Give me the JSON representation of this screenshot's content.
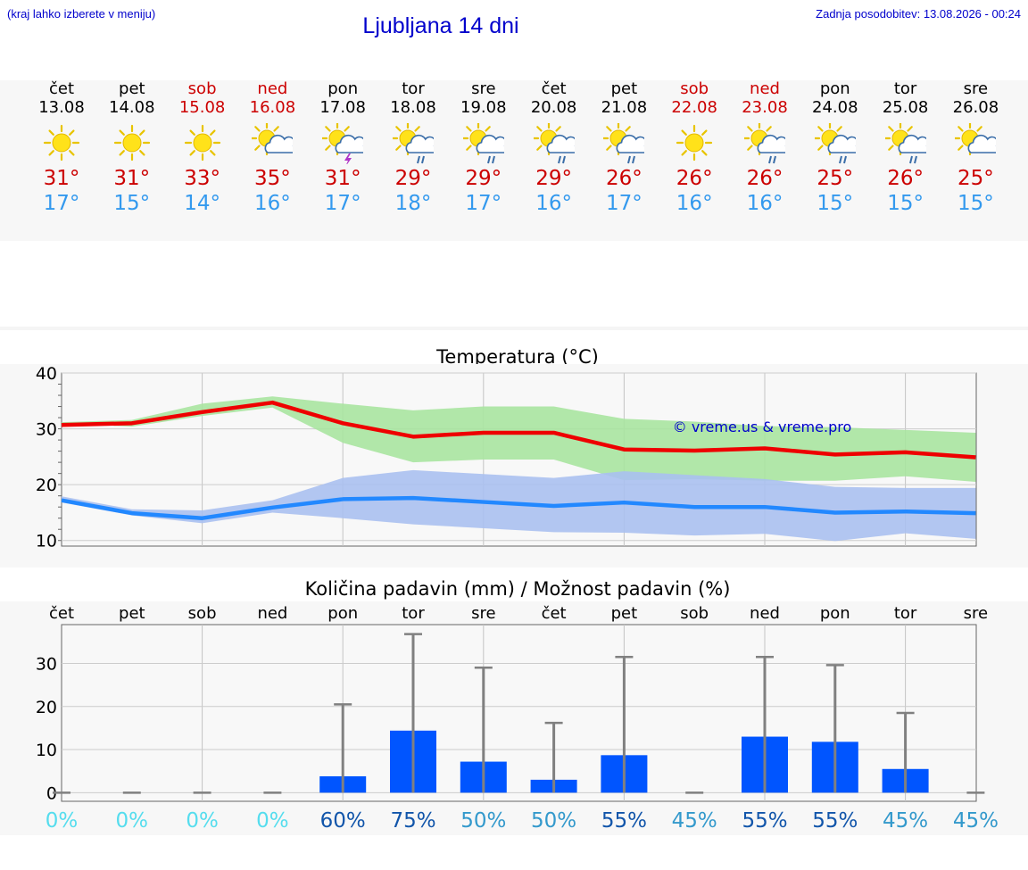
{
  "header": {
    "hint": "(kraj lahko izberete v meniju)",
    "title": "Ljubljana 14 dni",
    "updated": "Zadnja posodobitev: 13.08.2026 - 00:24"
  },
  "days": [
    {
      "name": "čet",
      "date": "13.08",
      "weekend": false,
      "icon": "sun-icon",
      "tmax": "31°",
      "tmin": "17°"
    },
    {
      "name": "pet",
      "date": "14.08",
      "weekend": false,
      "icon": "sun-icon",
      "tmax": "31°",
      "tmin": "15°"
    },
    {
      "name": "sob",
      "date": "15.08",
      "weekend": true,
      "icon": "sun-icon",
      "tmax": "33°",
      "tmin": "14°"
    },
    {
      "name": "ned",
      "date": "16.08",
      "weekend": true,
      "icon": "sun-cloud-icon",
      "tmax": "35°",
      "tmin": "16°"
    },
    {
      "name": "pon",
      "date": "17.08",
      "weekend": false,
      "icon": "sun-cloud-thunder-icon",
      "tmax": "31°",
      "tmin": "17°"
    },
    {
      "name": "tor",
      "date": "18.08",
      "weekend": false,
      "icon": "sun-cloud-rain-icon",
      "tmax": "29°",
      "tmin": "18°"
    },
    {
      "name": "sre",
      "date": "19.08",
      "weekend": false,
      "icon": "sun-cloud-rain-icon",
      "tmax": "29°",
      "tmin": "17°"
    },
    {
      "name": "čet",
      "date": "20.08",
      "weekend": false,
      "icon": "sun-cloud-rain-icon",
      "tmax": "29°",
      "tmin": "16°"
    },
    {
      "name": "pet",
      "date": "21.08",
      "weekend": false,
      "icon": "sun-cloud-rain-icon",
      "tmax": "26°",
      "tmin": "17°"
    },
    {
      "name": "sob",
      "date": "22.08",
      "weekend": true,
      "icon": "sun-icon",
      "tmax": "26°",
      "tmin": "16°"
    },
    {
      "name": "ned",
      "date": "23.08",
      "weekend": true,
      "icon": "sun-cloud-rain-icon",
      "tmax": "26°",
      "tmin": "16°"
    },
    {
      "name": "pon",
      "date": "24.08",
      "weekend": false,
      "icon": "sun-cloud-rain-icon",
      "tmax": "25°",
      "tmin": "15°"
    },
    {
      "name": "tor",
      "date": "25.08",
      "weekend": false,
      "icon": "sun-cloud-rain-icon",
      "tmax": "26°",
      "tmin": "15°"
    },
    {
      "name": "sre",
      "date": "26.08",
      "weekend": false,
      "icon": "sun-cloud-icon",
      "tmax": "25°",
      "tmin": "15°"
    }
  ],
  "colors": {
    "link_blue": "#0000cc",
    "weekend_red": "#cc0000",
    "max_red": "#ee0000",
    "min_blue": "#2288ff",
    "max_band": "#a8e4a0",
    "min_band": "#aac0f0",
    "bar_blue": "#0055ff",
    "whisker": "#808080"
  },
  "chart_data": [
    {
      "type": "line",
      "title": "Temperatura (°C)",
      "watermark": "© vreme.us & vreme.pro",
      "ylim": [
        9,
        40
      ],
      "yticks": [
        10,
        20,
        30,
        40
      ],
      "grid": true,
      "series": [
        {
          "values": [
            30.7,
            31.0,
            33.0,
            34.7,
            31.0,
            28.6,
            29.3,
            29.3,
            26.3,
            26.1,
            26.5,
            25.4,
            25.8,
            24.9
          ],
          "band_low": [
            31,
            30.4,
            32.3,
            33.8,
            27.5,
            24.0,
            24.5,
            24.5,
            20.8,
            21.0,
            20.7,
            20.7,
            21.5,
            20.5
          ],
          "band_high": [
            31.2,
            31.6,
            34.5,
            35.8,
            34.5,
            33.3,
            34.0,
            34.0,
            31.8,
            31.3,
            30.5,
            30.3,
            29.8,
            29.3
          ]
        },
        {
          "values": [
            17.2,
            14.9,
            14.0,
            15.9,
            17.4,
            17.6,
            16.9,
            16.2,
            16.8,
            16.0,
            16.0,
            15.0,
            15.2,
            14.9
          ],
          "band_low": [
            16.8,
            14.5,
            13.1,
            15.0,
            14.0,
            12.9,
            12.2,
            11.5,
            11.4,
            10.9,
            11.2,
            9.9,
            11.3,
            10.3
          ],
          "band_high": [
            17.9,
            15.6,
            15.4,
            17.2,
            21.2,
            22.6,
            21.9,
            21.2,
            22.4,
            21.7,
            21.0,
            19.6,
            19.4,
            19.4
          ]
        }
      ]
    },
    {
      "type": "bar",
      "title": "Količina padavin (mm) / Možnost padavin (%)",
      "categories": [
        "čet",
        "pet",
        "sob",
        "ned",
        "pon",
        "tor",
        "sre",
        "čet",
        "pet",
        "sob",
        "ned",
        "pon",
        "tor",
        "sre"
      ],
      "ylim": [
        -2,
        39
      ],
      "yticks": [
        0,
        10,
        20,
        30
      ],
      "grid": true,
      "values": [
        0,
        0,
        0,
        0,
        3.8,
        14.4,
        7.2,
        3.0,
        8.7,
        0,
        13.0,
        11.8,
        5.5,
        0
      ],
      "whisker_high": [
        0,
        0,
        0,
        0,
        20.5,
        36.8,
        29.0,
        16.2,
        31.5,
        0,
        31.5,
        29.6,
        18.5,
        0
      ],
      "probabilities": [
        "0%",
        "0%",
        "0%",
        "0%",
        "60%",
        "75%",
        "50%",
        "50%",
        "55%",
        "45%",
        "55%",
        "55%",
        "45%",
        "45%"
      ],
      "probability_colors": [
        "#55ddee",
        "#55ddee",
        "#55ddee",
        "#55ddee",
        "#1155aa",
        "#1155aa",
        "#3399cc",
        "#3399cc",
        "#1155aa",
        "#3399cc",
        "#1155aa",
        "#1155aa",
        "#3399cc",
        "#3399cc"
      ]
    }
  ]
}
